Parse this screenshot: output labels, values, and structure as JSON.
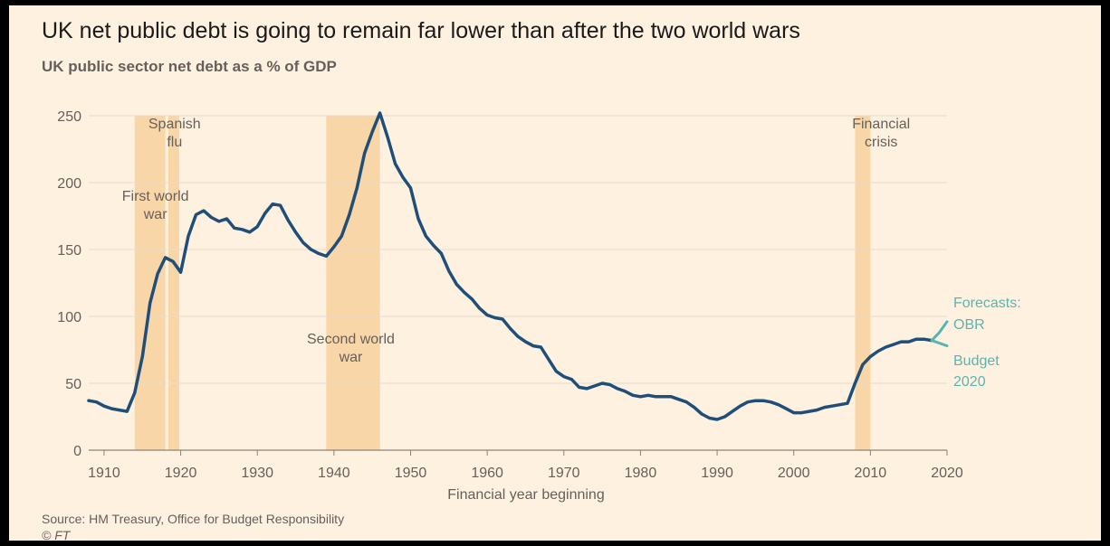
{
  "chart_data": {
    "type": "line",
    "title": "UK net public debt is going to remain far lower than after the two world wars",
    "subtitle": "UK public sector net debt as a % of GDP",
    "xlabel": "Financial year beginning",
    "ylabel": "",
    "xlim": [
      1908,
      2020
    ],
    "ylim": [
      0,
      250
    ],
    "x_ticks": [
      "1910",
      "1920",
      "1930",
      "1940",
      "1950",
      "1960",
      "1970",
      "1980",
      "1990",
      "2000",
      "2010",
      "2020"
    ],
    "y_ticks": [
      "0",
      "50",
      "100",
      "150",
      "200",
      "250"
    ],
    "grid": true,
    "series": [
      {
        "color": "#1f4e79",
        "x": [
          1908,
          1909,
          1910,
          1911,
          1912,
          1913,
          1914,
          1915,
          1916,
          1917,
          1918,
          1919,
          1920,
          1921,
          1922,
          1923,
          1924,
          1925,
          1926,
          1927,
          1928,
          1929,
          1930,
          1931,
          1932,
          1933,
          1934,
          1935,
          1936,
          1937,
          1938,
          1939,
          1940,
          1941,
          1942,
          1943,
          1944,
          1945,
          1946,
          1947,
          1948,
          1949,
          1950,
          1951,
          1952,
          1953,
          1954,
          1955,
          1956,
          1957,
          1958,
          1959,
          1960,
          1961,
          1962,
          1963,
          1964,
          1965,
          1966,
          1967,
          1968,
          1969,
          1970,
          1971,
          1972,
          1973,
          1974,
          1975,
          1976,
          1977,
          1978,
          1979,
          1980,
          1981,
          1982,
          1983,
          1984,
          1985,
          1986,
          1987,
          1988,
          1989,
          1990,
          1991,
          1992,
          1993,
          1994,
          1995,
          1996,
          1997,
          1998,
          1999,
          2000,
          2001,
          2002,
          2003,
          2004,
          2005,
          2006,
          2007,
          2008,
          2009,
          2010,
          2011,
          2012,
          2013,
          2014,
          2015,
          2016,
          2017,
          2018
        ],
        "values": [
          37,
          36,
          33,
          31,
          30,
          29,
          43,
          70,
          110,
          132,
          144,
          141,
          133,
          160,
          176,
          179,
          174,
          171,
          173,
          166,
          165,
          163,
          167,
          177,
          184,
          183,
          172,
          163,
          155,
          150,
          147,
          145,
          152,
          160,
          176,
          196,
          222,
          238,
          252,
          234,
          214,
          204,
          196,
          173,
          160,
          153,
          147,
          134,
          124,
          118,
          113,
          106,
          101,
          99,
          98,
          91,
          85,
          81,
          78,
          77,
          68,
          59,
          55,
          53,
          47,
          46,
          48,
          50,
          49,
          46,
          44,
          41,
          40,
          41,
          40,
          40,
          40,
          38,
          36,
          32,
          27,
          24,
          23,
          25,
          29,
          33,
          36,
          37,
          37,
          36,
          34,
          31,
          28,
          28,
          29,
          30,
          32,
          33,
          34,
          35,
          50,
          64,
          70,
          74,
          77,
          79,
          81,
          81,
          83,
          83,
          82
        ]
      }
    ],
    "forecasts": {
      "label": "Forecasts:",
      "series": [
        {
          "name": "OBR",
          "color": "#5ab5b0",
          "x": [
            2018,
            2019,
            2020
          ],
          "values": [
            82,
            88,
            96
          ]
        },
        {
          "name": "Budget 2020",
          "color": "#5ab5b0",
          "x": [
            2018,
            2019,
            2020
          ],
          "values": [
            82,
            80,
            78
          ]
        }
      ]
    },
    "shaded_periods": [
      {
        "start": 1914,
        "end": 1918,
        "label_lines": [
          "First world",
          "war"
        ]
      },
      {
        "start": 1918.4,
        "end": 1919.8,
        "label_lines": [
          "Spanish",
          "flu"
        ]
      },
      {
        "start": 1939,
        "end": 1946,
        "label_lines": [
          "Second world",
          "war"
        ]
      },
      {
        "start": 2008,
        "end": 2010,
        "label_lines": [
          "Financial",
          "crisis"
        ]
      }
    ]
  },
  "footer": {
    "source": "Source: HM Treasury, Office for Budget Responsibility",
    "credit": "© FT"
  },
  "colors": {
    "background": "#fff1e0",
    "shade": "#f8d6a8",
    "line": "#1f4e79",
    "forecast": "#5ab5b0",
    "grid": "#e9dccb"
  }
}
